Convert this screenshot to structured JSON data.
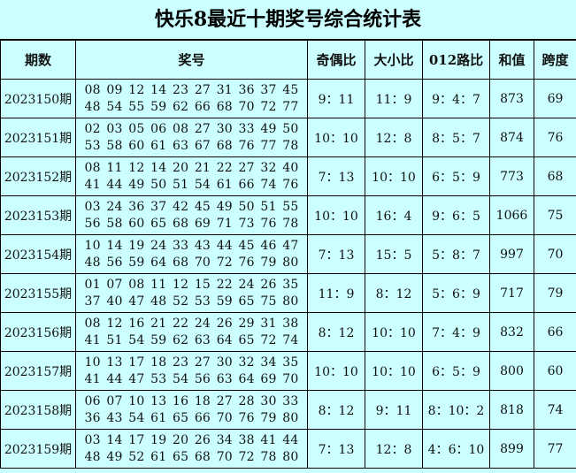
{
  "title": "快乐8最近十期奖号综合统计表",
  "headers": [
    "期数",
    "奖号",
    "奇偶比",
    "大小比",
    "012路比",
    "和值",
    "跨度"
  ],
  "rows": [
    {
      "period": "2023150期",
      "line1": "08 09 12 14 23 27 31 36 37 45",
      "line2": "48 54 55 59 62 66 68 70 72 77",
      "odd_even": "9：11",
      "big_small": "11：9",
      "route012": "9：4：7",
      "sum": "873",
      "span": "69"
    },
    {
      "period": "2023151期",
      "line1": "02 03 05 06 08 27 30 33 49 50",
      "line2": "53 58 60 61 63 67 68 76 77 78",
      "odd_even": "10：10",
      "big_small": "12：8",
      "route012": "8：5：7",
      "sum": "874",
      "span": "76"
    },
    {
      "period": "2023152期",
      "line1": "08 11 12 14 20 21 22 27 32 40",
      "line2": "41 44 49 50 51 54 61 66 74 76",
      "odd_even": "7：13",
      "big_small": "10：10",
      "route012": "6：5：9",
      "sum": "773",
      "span": "68"
    },
    {
      "period": "2023153期",
      "line1": "03 24 36 37 42 45 49 50 51 55",
      "line2": "56 58 60 65 68 69 71 73 76 78",
      "odd_even": "10：10",
      "big_small": "16：4",
      "route012": "9：6：5",
      "sum": "1066",
      "span": "75"
    },
    {
      "period": "2023154期",
      "line1": "10 14 19 24 33 43 44 45 46 47",
      "line2": "48 56 59 64 68 70 72 76 79 80",
      "odd_even": "7：13",
      "big_small": "15：5",
      "route012": "5：8：7",
      "sum": "997",
      "span": "70"
    },
    {
      "period": "2023155期",
      "line1": "01 07 08 11 12 15 22 24 26 35",
      "line2": "37 40 47 48 52 53 59 65 75 80",
      "odd_even": "11：9",
      "big_small": "8：12",
      "route012": "5：6：9",
      "sum": "717",
      "span": "79"
    },
    {
      "period": "2023156期",
      "line1": "08 12 16 21 22 24 26 29 31 38",
      "line2": "41 51 54 59 62 63 64 65 72 74",
      "odd_even": "8：12",
      "big_small": "10：10",
      "route012": "7：4：9",
      "sum": "832",
      "span": "66"
    },
    {
      "period": "2023157期",
      "line1": "10 13 17 18 23 27 30 32 34 35",
      "line2": "41 44 47 53 54 56 63 64 69 70",
      "odd_even": "10：10",
      "big_small": "10：10",
      "route012": "6：5：9",
      "sum": "800",
      "span": "60"
    },
    {
      "period": "2023158期",
      "line1": "06 07 10 13 16 18 27 28 30 33",
      "line2": "36 43 54 61 65 66 70 76 79 80",
      "odd_even": "8：12",
      "big_small": "9：11",
      "route012": "8：10：2",
      "sum": "818",
      "span": "74"
    },
    {
      "period": "2023159期",
      "line1": "03 14 17 19 20 26 34 38 41 44",
      "line2": "48 49 52 61 65 68 70 72 78 80",
      "odd_even": "7：13",
      "big_small": "12：8",
      "route012": "4：6：10",
      "sum": "899",
      "span": "77"
    }
  ]
}
